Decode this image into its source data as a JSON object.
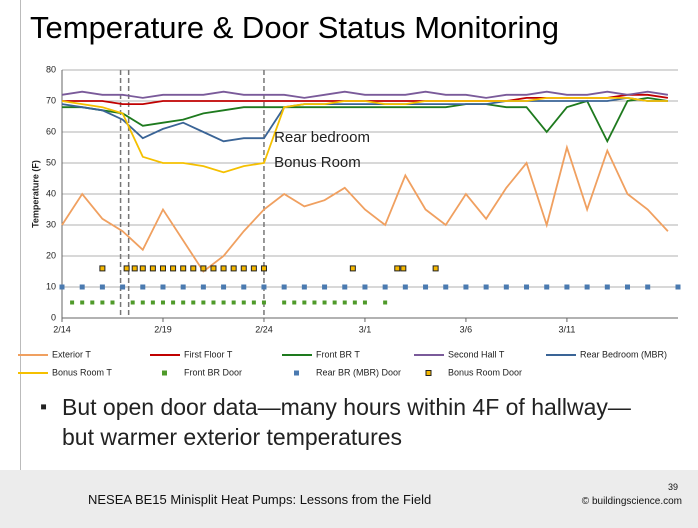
{
  "slide": {
    "title": "Temperature & Door Status Monitoring",
    "bullet": "But open door data—many hours within 4F of hallway—but warmer exterior temperatures",
    "footer": "NESEA BE15 Minisplit Heat Pumps: Lessons from the Field",
    "page": "39",
    "copyright": "© buildingscience.com"
  },
  "chart_data": {
    "type": "line",
    "y_label": "Temperature (F)",
    "xlim": [
      0,
      30.5
    ],
    "xticks": [
      {
        "value": 0,
        "label": "2/14"
      },
      {
        "value": 5,
        "label": "2/19"
      },
      {
        "value": 10,
        "label": "2/24"
      },
      {
        "value": 15,
        "label": "3/1"
      },
      {
        "value": 20,
        "label": "3/6"
      },
      {
        "value": 25,
        "label": "3/11"
      }
    ],
    "ylim": [
      0,
      80
    ],
    "yticks": [
      0,
      10,
      20,
      30,
      40,
      50,
      60,
      70,
      80
    ],
    "grid": true,
    "reference_lines_x": [
      2.9,
      3.3,
      10.0
    ],
    "annotations": [
      {
        "text": "Rear bedroom",
        "x": 10.5,
        "y": 58,
        "color": "#2e5a8e"
      },
      {
        "text": "Bonus Room",
        "x": 10.5,
        "y": 50,
        "color": "#f5c000"
      }
    ],
    "x": [
      0,
      1,
      2,
      3,
      4,
      5,
      6,
      7,
      8,
      9,
      10,
      11,
      12,
      13,
      14,
      15,
      16,
      17,
      18,
      19,
      20,
      21,
      22,
      23,
      24,
      25,
      26,
      27,
      28,
      29,
      30
    ],
    "series": [
      {
        "name": "Exterior T",
        "color": "#f0a060",
        "values": [
          30,
          40,
          32,
          28,
          22,
          35,
          25,
          15,
          20,
          28,
          35,
          40,
          36,
          38,
          42,
          35,
          30,
          46,
          35,
          30,
          40,
          32,
          42,
          50,
          30,
          55,
          35,
          54,
          40,
          35,
          28
        ]
      },
      {
        "name": "First Floor T",
        "color": "#c00000",
        "values": [
          70,
          70,
          70,
          69,
          69,
          70,
          70,
          70,
          70,
          70,
          70,
          70,
          70,
          70,
          70,
          70,
          70,
          70,
          70,
          70,
          70,
          70,
          70,
          71,
          71,
          71,
          71,
          71,
          72,
          72,
          71
        ]
      },
      {
        "name": "Front BR T",
        "color": "#1e7a1e",
        "values": [
          68,
          68,
          67,
          66,
          62,
          63,
          64,
          66,
          67,
          68,
          68,
          68,
          68,
          68,
          68,
          68,
          68,
          68,
          68,
          68,
          69,
          69,
          68,
          68,
          60,
          68,
          70,
          57,
          70,
          71,
          70
        ]
      },
      {
        "name": "Second Hall T",
        "color": "#7a5a9a",
        "values": [
          72,
          73,
          72,
          72,
          71,
          72,
          72,
          72,
          73,
          72,
          72,
          72,
          71,
          72,
          73,
          72,
          72,
          72,
          73,
          72,
          72,
          71,
          72,
          72,
          73,
          72,
          72,
          73,
          72,
          73,
          72
        ]
      },
      {
        "name": "Rear Bedroom (MBR)",
        "color": "#3a6496",
        "values": [
          69,
          68,
          67,
          64,
          58,
          61,
          63,
          60,
          57,
          58,
          58,
          68,
          69,
          69,
          69,
          69,
          69,
          69,
          69,
          69,
          69,
          69,
          70,
          70,
          70,
          70,
          70,
          70,
          71,
          70,
          70
        ]
      },
      {
        "name": "Bonus Room T",
        "color": "#f5c000",
        "values": [
          70,
          69,
          68,
          66,
          52,
          50,
          50,
          49,
          47,
          49,
          50,
          68,
          69,
          69,
          70,
          70,
          69,
          69,
          70,
          70,
          70,
          70,
          70,
          70,
          71,
          71,
          71,
          71,
          71,
          70,
          70
        ]
      },
      {
        "name": "Front BR Door",
        "color": "#4f9a2a",
        "x": [
          0.5,
          1,
          1.5,
          2,
          2.5,
          3.5,
          4,
          4.5,
          5,
          5.5,
          6,
          6.5,
          7,
          7.5,
          8,
          8.5,
          9,
          9.5,
          10,
          11,
          11.5,
          12,
          12.5,
          13,
          13.5,
          14,
          14.5,
          15,
          16
        ],
        "values": [
          5,
          5,
          5,
          5,
          5,
          5,
          5,
          5,
          5,
          5,
          5,
          5,
          5,
          5,
          5,
          5,
          5,
          5,
          5,
          5,
          5,
          5,
          5,
          5,
          5,
          5,
          5,
          5,
          5
        ]
      },
      {
        "name": "Rear BR (MBR) Door",
        "color": "#4a7ab0",
        "x": [
          0,
          1,
          2,
          3,
          4,
          5,
          6,
          7,
          8,
          9,
          10,
          11,
          12,
          13,
          14,
          15,
          16,
          17,
          18,
          19,
          20,
          21,
          22,
          23,
          24,
          25,
          26,
          27,
          28,
          29,
          30.5
        ],
        "values": [
          10,
          10,
          10,
          10,
          10,
          10,
          10,
          10,
          10,
          10,
          10,
          10,
          10,
          10,
          10,
          10,
          10,
          10,
          10,
          10,
          10,
          10,
          10,
          10,
          10,
          10,
          10,
          10,
          10,
          10,
          10
        ]
      },
      {
        "name": "Bonus Room Door",
        "color": "#f5b800",
        "x": [
          2,
          3.2,
          3.6,
          4,
          4.5,
          5,
          5.5,
          6,
          6.5,
          7,
          7.5,
          8,
          8.5,
          9,
          9.5,
          10,
          14.4,
          16.6,
          16.9,
          18.5
        ],
        "values": [
          16,
          16,
          16,
          16,
          16,
          16,
          16,
          16,
          16,
          16,
          16,
          16,
          16,
          16,
          16,
          16,
          16,
          16,
          16,
          16
        ]
      }
    ]
  }
}
